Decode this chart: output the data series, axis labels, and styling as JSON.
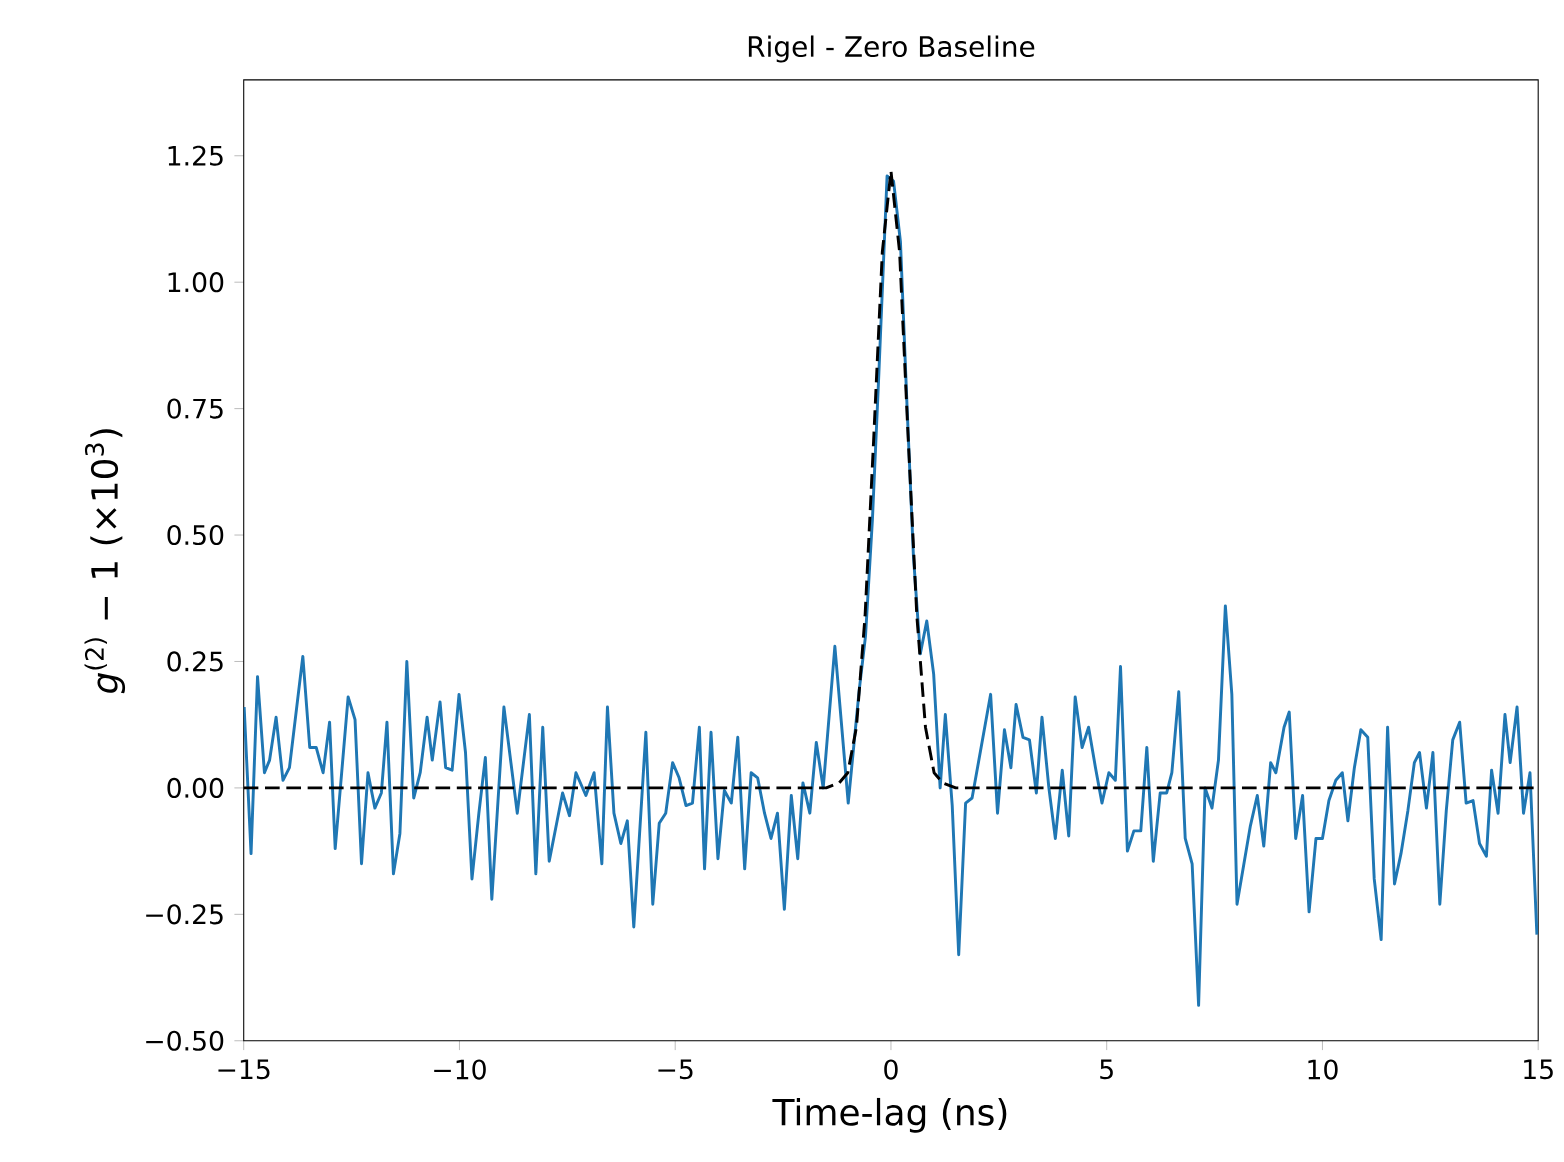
{
  "chart_data": {
    "type": "line",
    "title": "Rigel - Zero Baseline",
    "xlabel": "Time-lag (ns)",
    "ylabel": "*g*$^{(2)}$ − 1 (×10$^{3}$)",
    "xlim": [
      -15,
      15
    ],
    "ylim": [
      -0.5,
      1.4
    ],
    "xticks": [
      {
        "value": -15,
        "label": "−15"
      },
      {
        "value": -10,
        "label": "−10"
      },
      {
        "value": -5,
        "label": "−5"
      },
      0,
      5,
      10,
      15
    ],
    "yticks": [
      {
        "value": -0.5,
        "label": "−0.50"
      },
      {
        "value": -0.25,
        "label": "−0.25"
      },
      {
        "value": 0,
        "label": "0.00"
      },
      {
        "value": 0.25,
        "label": "0.25"
      },
      {
        "value": 0.5,
        "label": "0.50"
      },
      {
        "value": 0.75,
        "label": "0.75"
      },
      {
        "value": 1.0,
        "label": "1.00"
      },
      {
        "value": 1.25,
        "label": "1.25"
      }
    ],
    "marker": "none",
    "series": [
      {
        "color": "#1f77b4",
        "line_style": "solid",
        "x": [
          -14.99,
          -14.83,
          -14.68,
          -14.52,
          -14.4,
          -14.25,
          -14.09,
          -13.94,
          -13.63,
          -13.47,
          -13.32,
          -13.16,
          -13.01,
          -12.88,
          -12.58,
          -12.42,
          -12.27,
          -12.12,
          -11.96,
          -11.81,
          -11.68,
          -11.53,
          -11.38,
          -11.22,
          -11.06,
          -10.91,
          -10.75,
          -10.63,
          -10.45,
          -10.32,
          -10.17,
          -10.01,
          -9.86,
          -9.71,
          -9.55,
          -9.4,
          -9.25,
          -8.97,
          -8.66,
          -8.38,
          -8.23,
          -8.07,
          -7.92,
          -7.61,
          -7.45,
          -7.3,
          -7.07,
          -6.88,
          -6.7,
          -6.57,
          -6.42,
          -6.26,
          -6.11,
          -5.96,
          -5.68,
          -5.52,
          -5.37,
          -5.22,
          -5.06,
          -4.91,
          -4.75,
          -4.6,
          -4.44,
          -4.32,
          -4.17,
          -4.01,
          -3.86,
          -3.7,
          -3.55,
          -3.39,
          -3.24,
          -3.09,
          -2.93,
          -2.78,
          -2.63,
          -2.47,
          -2.31,
          -2.16,
          -2.04,
          -1.88,
          -1.73,
          -1.57,
          -1.3,
          -0.99,
          -0.74,
          -0.59,
          -0.43,
          -0.28,
          -0.09,
          0.06,
          0.22,
          0.37,
          0.52,
          0.68,
          0.83,
          0.99,
          1.14,
          1.26,
          1.42,
          1.57,
          1.73,
          1.88,
          2.31,
          2.47,
          2.63,
          2.78,
          2.9,
          3.06,
          3.21,
          3.37,
          3.5,
          3.66,
          3.81,
          3.97,
          4.12,
          4.27,
          4.43,
          4.58,
          4.74,
          4.89,
          5.05,
          5.2,
          5.32,
          5.48,
          5.63,
          5.79,
          5.93,
          6.08,
          6.24,
          6.39,
          6.51,
          6.67,
          6.82,
          6.98,
          7.13,
          7.28,
          7.44,
          7.59,
          7.75,
          7.9,
          8.02,
          8.18,
          8.33,
          8.49,
          8.64,
          8.8,
          8.92,
          9.11,
          9.23,
          9.38,
          9.54,
          9.69,
          9.85,
          10.0,
          10.15,
          10.31,
          10.46,
          10.59,
          10.74,
          10.89,
          11.05,
          11.2,
          11.36,
          11.51,
          11.67,
          11.82,
          11.98,
          12.13,
          12.25,
          12.41,
          12.56,
          12.72,
          12.87,
          13.02,
          13.18,
          13.33,
          13.49,
          13.64,
          13.8,
          13.92,
          14.07,
          14.23,
          14.35,
          14.51,
          14.66,
          14.81,
          14.97
        ],
        "values": [
          0.16,
          -0.13,
          0.22,
          0.03,
          0.055,
          0.14,
          0.015,
          0.04,
          0.26,
          0.08,
          0.08,
          0.03,
          0.13,
          -0.12,
          0.18,
          0.135,
          -0.15,
          0.03,
          -0.04,
          -0.01,
          0.13,
          -0.17,
          -0.09,
          0.25,
          -0.02,
          0.03,
          0.14,
          0.055,
          0.17,
          0.04,
          0.035,
          0.185,
          0.07,
          -0.18,
          -0.05,
          0.06,
          -0.22,
          0.16,
          -0.05,
          0.145,
          -0.17,
          0.12,
          -0.145,
          -0.01,
          -0.055,
          0.03,
          -0.015,
          0.03,
          -0.15,
          0.16,
          -0.05,
          -0.11,
          -0.065,
          -0.275,
          0.11,
          -0.23,
          -0.07,
          -0.05,
          0.05,
          0.02,
          -0.035,
          -0.03,
          0.12,
          -0.16,
          0.11,
          -0.14,
          -0.005,
          -0.03,
          0.1,
          -0.16,
          0.03,
          0.02,
          -0.05,
          -0.1,
          -0.05,
          -0.24,
          -0.015,
          -0.14,
          0.01,
          -0.05,
          0.09,
          0.0,
          0.28,
          -0.03,
          0.19,
          0.3,
          0.53,
          0.82,
          1.21,
          1.2,
          1.08,
          0.76,
          0.46,
          0.265,
          0.33,
          0.225,
          0.0,
          0.145,
          -0.035,
          -0.33,
          -0.03,
          -0.02,
          0.185,
          -0.05,
          0.115,
          0.04,
          0.165,
          0.1,
          0.095,
          -0.01,
          0.14,
          0.0,
          -0.1,
          0.035,
          -0.095,
          0.18,
          0.08,
          0.12,
          0.04,
          -0.03,
          0.03,
          0.015,
          0.24,
          -0.125,
          -0.085,
          -0.085,
          0.08,
          -0.145,
          -0.01,
          -0.01,
          0.03,
          0.19,
          -0.1,
          -0.15,
          -0.43,
          0.0,
          -0.04,
          0.055,
          0.36,
          0.185,
          -0.23,
          -0.15,
          -0.075,
          -0.015,
          -0.115,
          0.05,
          0.03,
          0.12,
          0.15,
          -0.1,
          -0.015,
          -0.245,
          -0.1,
          -0.1,
          -0.025,
          0.015,
          0.03,
          -0.065,
          0.04,
          0.115,
          0.1,
          -0.18,
          -0.3,
          0.12,
          -0.19,
          -0.13,
          -0.045,
          0.05,
          0.07,
          -0.04,
          0.07,
          -0.23,
          -0.045,
          0.095,
          0.13,
          -0.03,
          -0.025,
          -0.11,
          -0.135,
          0.035,
          -0.05,
          0.145,
          0.05,
          0.16,
          -0.05,
          0.03,
          -0.29
        ]
      },
      {
        "color": "#000000",
        "line_style": "dashed",
        "x": [
          -15,
          -2,
          -1.5,
          -1.2,
          -1.0,
          -0.8,
          -0.6,
          -0.4,
          -0.2,
          0,
          0.2,
          0.4,
          0.6,
          0.8,
          1.0,
          1.2,
          1.5,
          2,
          15
        ],
        "values": [
          0,
          0,
          0,
          0.01,
          0.03,
          0.12,
          0.34,
          0.69,
          1.06,
          1.22,
          1.06,
          0.69,
          0.34,
          0.12,
          0.03,
          0.01,
          0,
          0,
          0
        ]
      }
    ]
  }
}
